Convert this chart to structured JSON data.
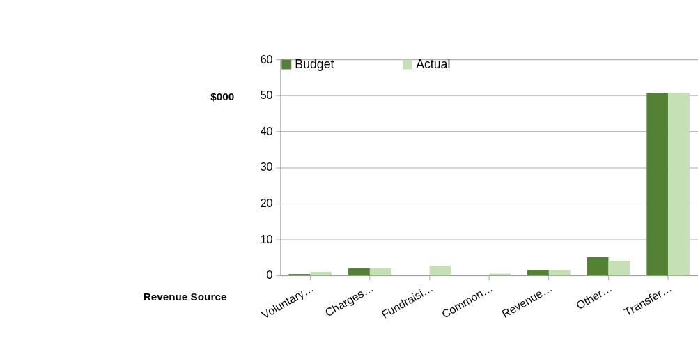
{
  "chart_data": {
    "type": "bar",
    "xlabel": "Revenue Source",
    "ylabel": "$000",
    "categories": [
      "Voluntary…",
      "Charges…",
      "Fundraisi…",
      "Common…",
      "Revenue…",
      "Other…",
      "Transfer…"
    ],
    "series": [
      {
        "name": "Budget",
        "color": "#548235",
        "values": [
          0.4,
          2.0,
          null,
          null,
          1.5,
          5.1,
          50.7
        ]
      },
      {
        "name": "Actual",
        "color": "#c5e0b4",
        "values": [
          1.0,
          2.0,
          2.7,
          0.5,
          1.5,
          4.1,
          50.7
        ]
      }
    ],
    "ylim": [
      0,
      60
    ],
    "yticks": [
      0,
      10,
      20,
      30,
      40,
      50,
      60
    ],
    "grid": "y",
    "legend": "top"
  }
}
